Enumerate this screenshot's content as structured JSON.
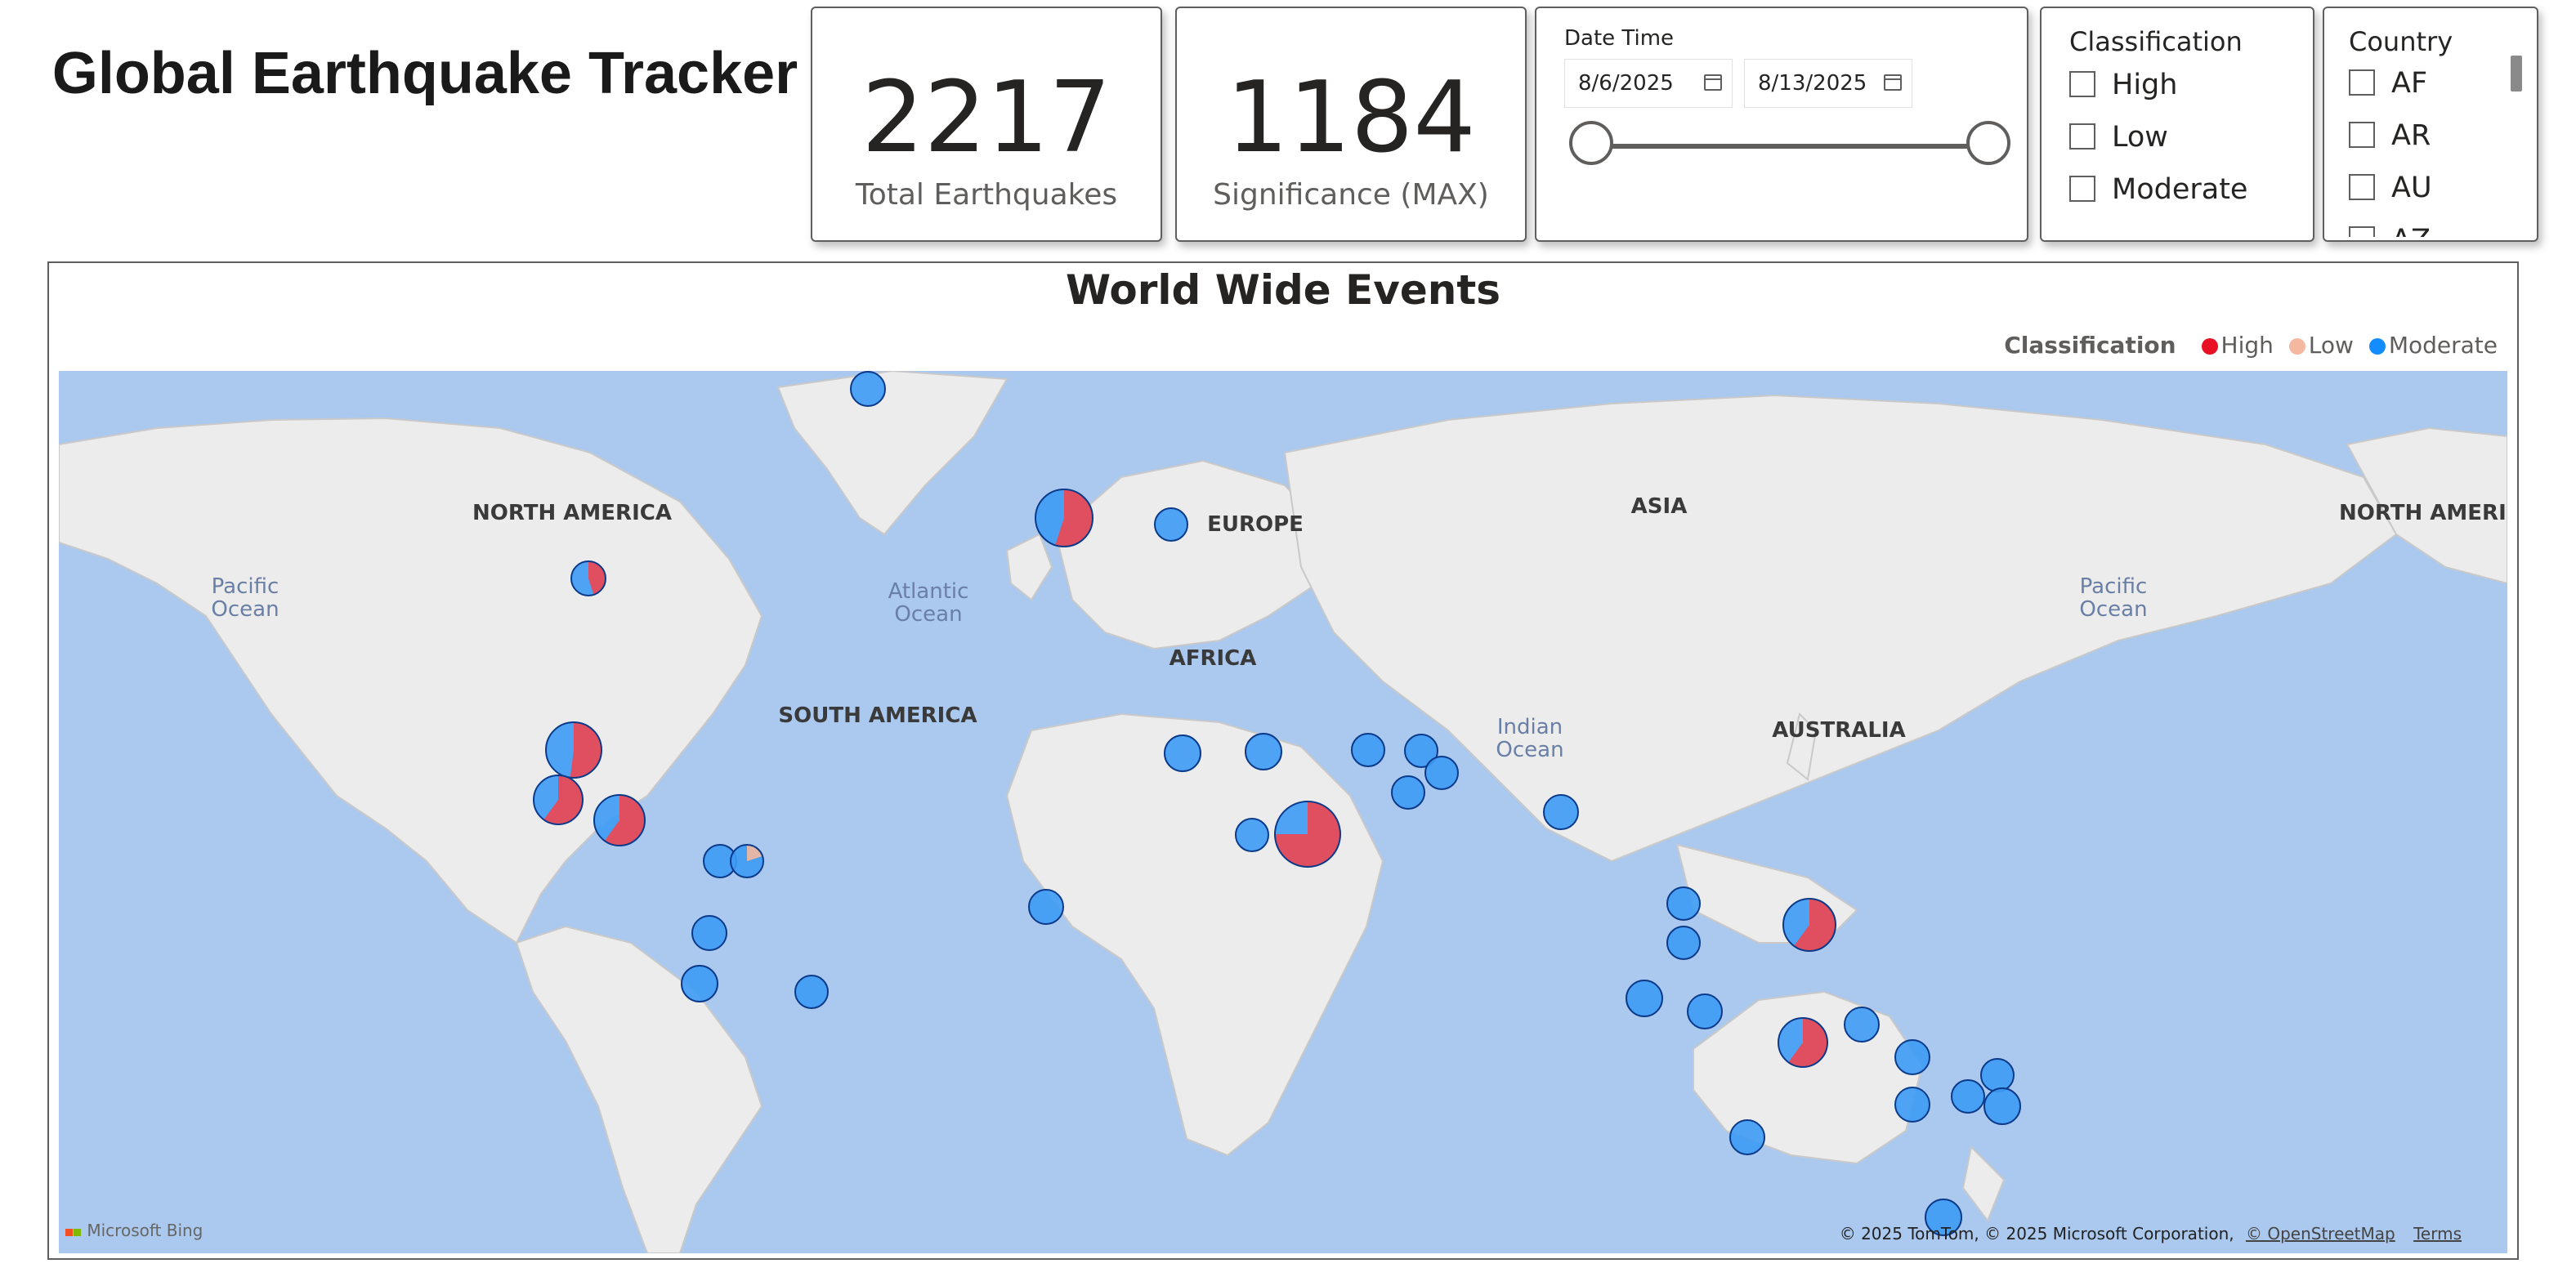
{
  "title": "Global Earthquake Tracker",
  "kpis": [
    {
      "value": "2217",
      "label": "Total Earthquakes"
    },
    {
      "value": "1184",
      "label": "Significance (MAX)"
    }
  ],
  "date_slicer": {
    "title": "Date Time",
    "start": "8/6/2025",
    "end": "8/13/2025",
    "range_fraction": [
      0,
      1
    ]
  },
  "classification_slicer": {
    "title": "Classification",
    "items": [
      "High",
      "Low",
      "Moderate"
    ]
  },
  "country_slicer": {
    "title": "Country",
    "items": [
      "AF",
      "AR",
      "AU",
      "AZ"
    ]
  },
  "map": {
    "title": "World Wide Events",
    "legend_title": "Classification",
    "legend": [
      {
        "label": "High",
        "color": "#e81123"
      },
      {
        "label": "Low",
        "color": "#f4b8a0"
      },
      {
        "label": "Moderate",
        "color": "#118dff"
      }
    ],
    "ocean_labels": [
      {
        "line1": "Pacific",
        "line2": "Ocean"
      },
      {
        "line1": "Atlantic",
        "line2": "Ocean"
      },
      {
        "line1": "Indian",
        "line2": "Ocean"
      },
      {
        "line1": "Pacific",
        "line2": "Ocean"
      }
    ],
    "continent_labels": [
      "NORTH AMERICA",
      "EUROPE",
      "ASIA",
      "AFRICA",
      "SOUTH AMERICA",
      "AUSTRALIA",
      "NORTH AMERICA"
    ],
    "provider": "Microsoft Bing",
    "attribution": "© 2025 TomTom, © 2025 Microsoft Corporation,",
    "osm_link": "© OpenStreetMap",
    "terms_link": "Terms"
  }
}
